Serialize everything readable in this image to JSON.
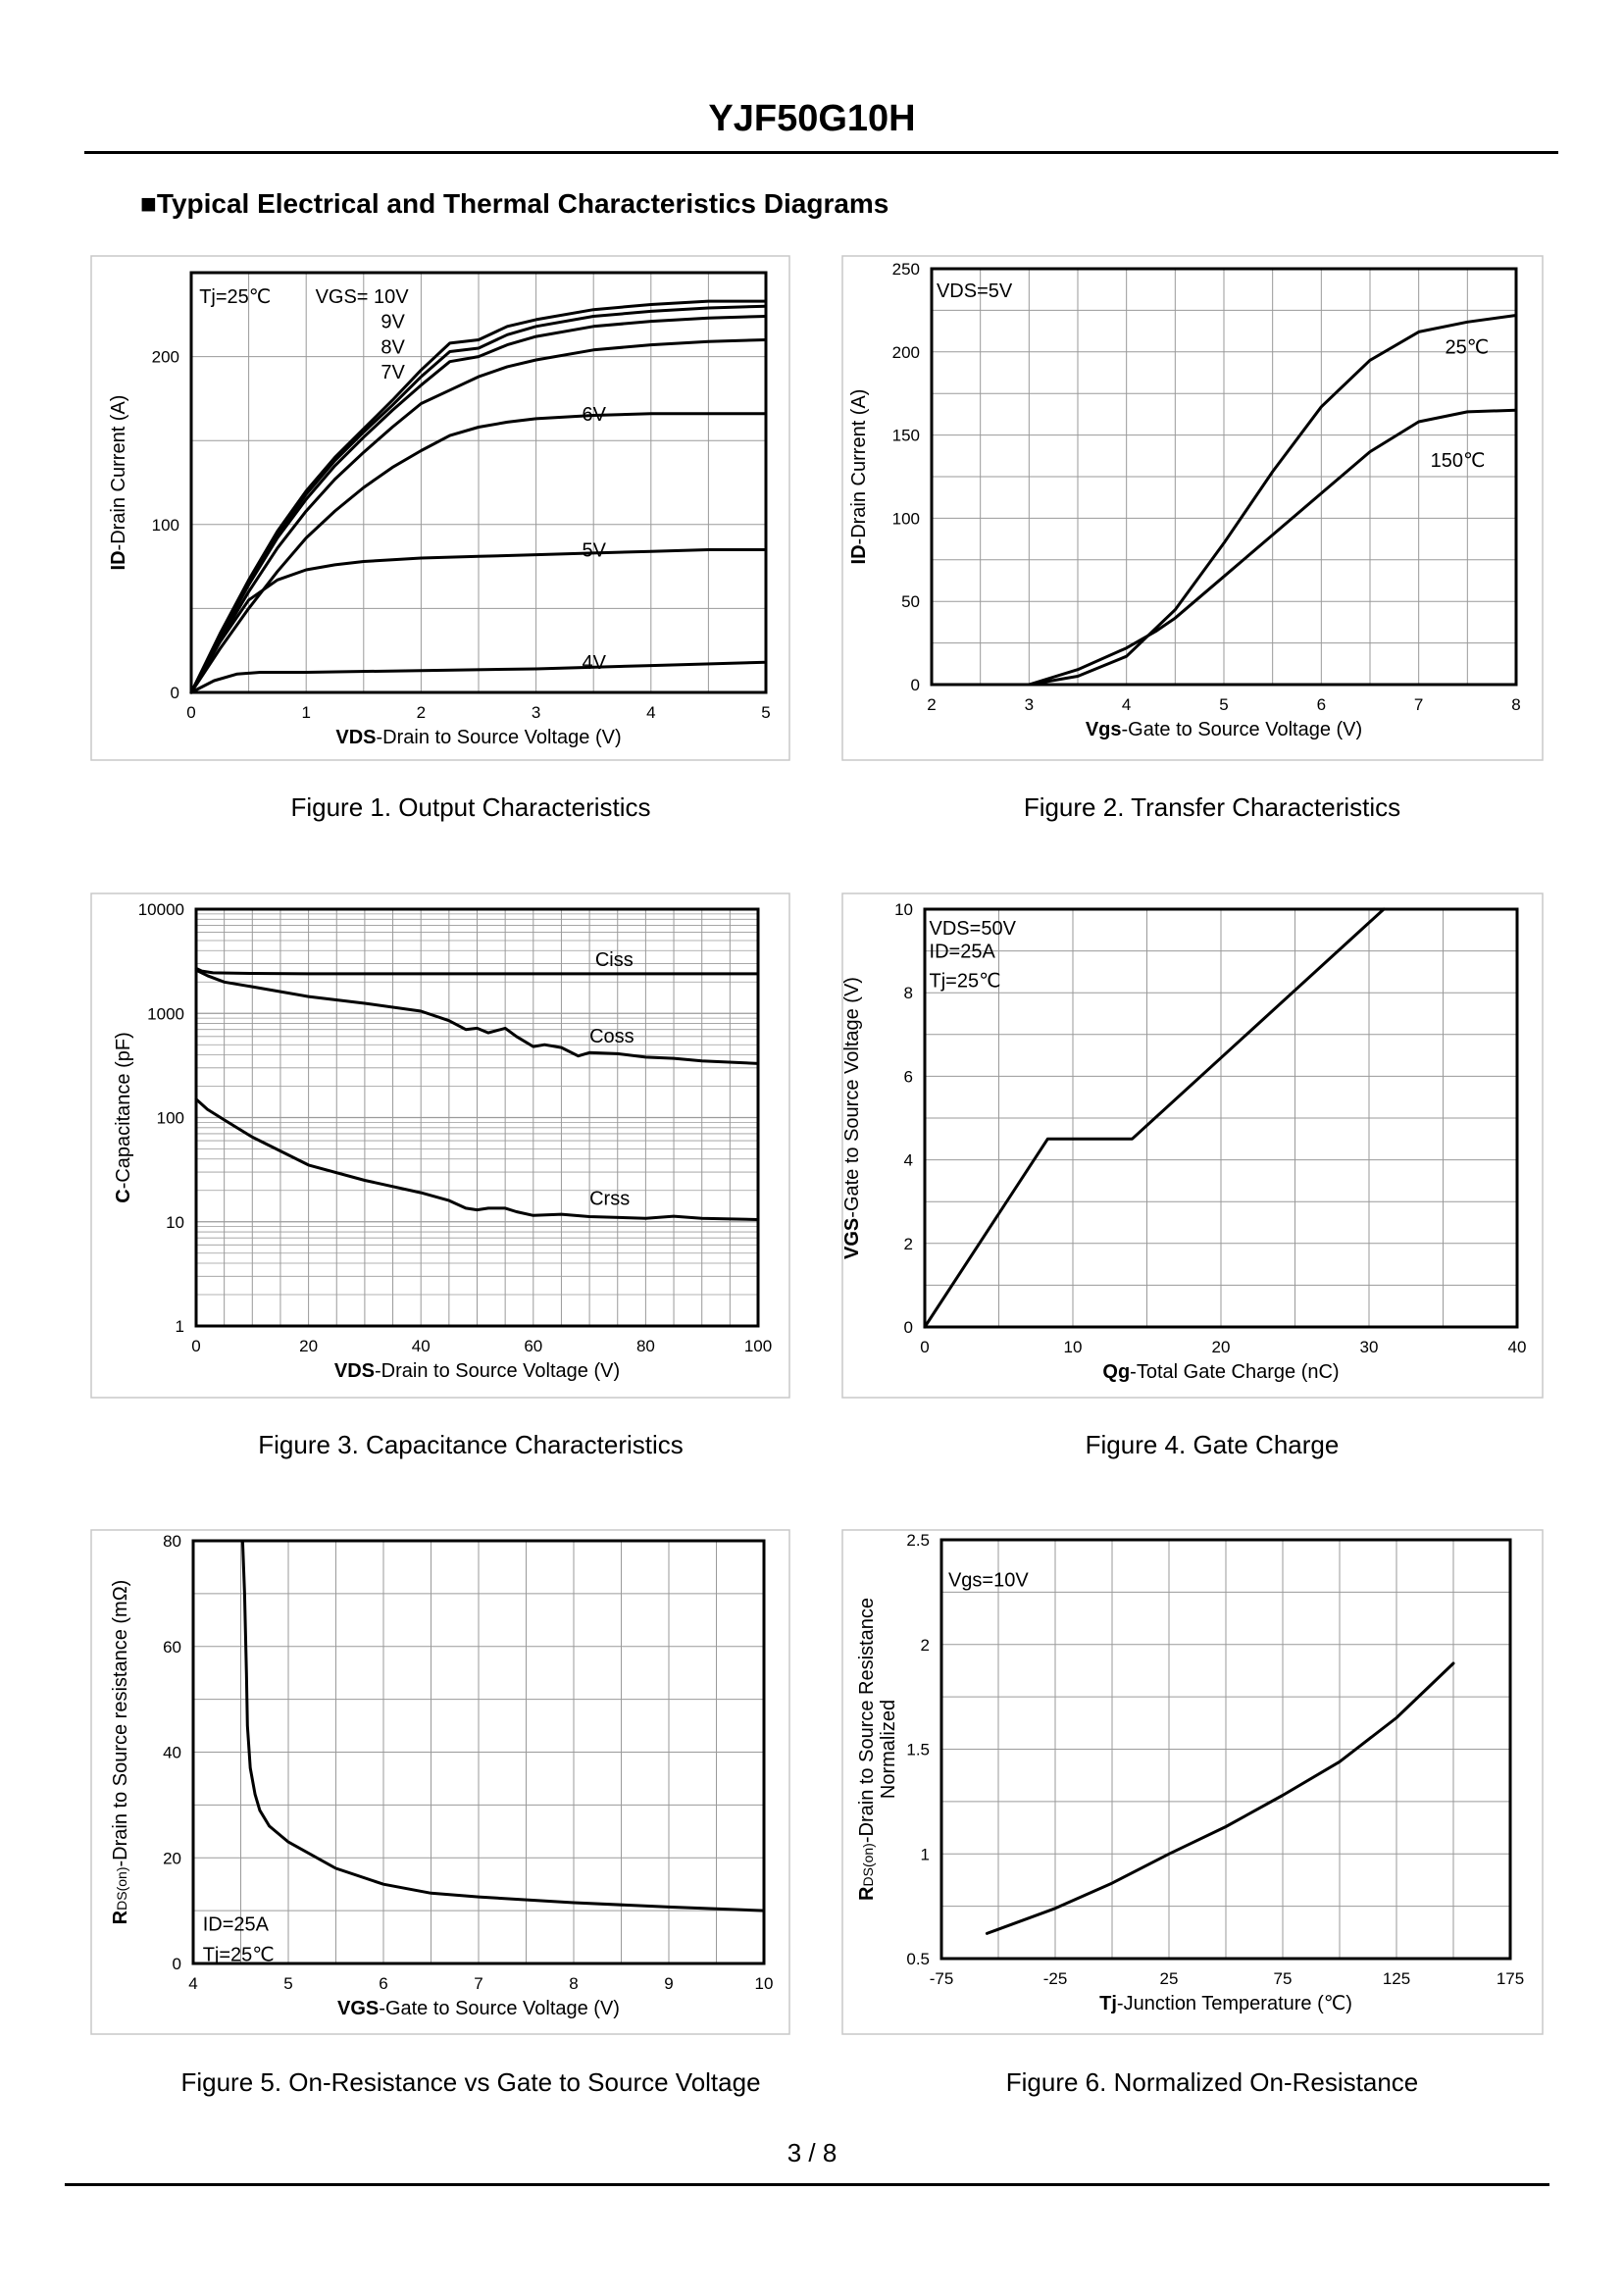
{
  "header": {
    "title": "YJF50G10H",
    "section_title": "■Typical Electrical and Thermal Characteristics Diagrams"
  },
  "footer": {
    "page_number": "3 / 8"
  },
  "chart_data": [
    {
      "id": "fig1",
      "type": "line",
      "caption": "Figure 1.  Output Characteristics",
      "xlabel_bold": "VDS",
      "xlabel_rest": "-Drain to Source Voltage (V)",
      "ylabel_bold": "ID",
      "ylabel_rest": "-Drain Current (A)",
      "xlim": [
        0,
        5
      ],
      "ylim": [
        0,
        250
      ],
      "xticks": [
        0,
        1,
        2,
        3,
        4,
        5
      ],
      "yticks": [
        0,
        100,
        200
      ],
      "grid": true,
      "annotations": [
        {
          "text": "Tj=25℃",
          "x": 0.07,
          "y": 236
        },
        {
          "text": "VGS= 10V",
          "x": 1.08,
          "y": 236
        },
        {
          "text": "9V",
          "x": 1.65,
          "y": 221
        },
        {
          "text": "8V",
          "x": 1.65,
          "y": 206
        },
        {
          "text": "7V",
          "x": 1.65,
          "y": 191
        },
        {
          "text": "6V",
          "x": 3.4,
          "y": 166
        },
        {
          "text": "5V",
          "x": 3.4,
          "y": 85
        },
        {
          "text": "4V",
          "x": 3.4,
          "y": 18
        }
      ],
      "series": [
        {
          "name": "VGS=10V",
          "x": [
            0,
            0.25,
            0.5,
            0.75,
            1,
            1.25,
            1.5,
            1.75,
            2,
            2.25,
            2.5,
            2.75,
            3,
            3.5,
            4,
            4.5,
            5
          ],
          "y": [
            0,
            35,
            67,
            96,
            120,
            140,
            157,
            174,
            192,
            208,
            210,
            218,
            222,
            228,
            231,
            233,
            233
          ]
        },
        {
          "name": "VGS=9V",
          "x": [
            0,
            0.25,
            0.5,
            0.75,
            1,
            1.25,
            1.5,
            1.75,
            2,
            2.25,
            2.5,
            2.75,
            3,
            3.5,
            4,
            4.5,
            5
          ],
          "y": [
            0,
            34,
            66,
            94,
            118,
            138,
            155,
            171,
            188,
            203,
            205,
            213,
            218,
            224,
            227,
            229,
            230
          ]
        },
        {
          "name": "VGS=8V",
          "x": [
            0,
            0.25,
            0.5,
            0.75,
            1,
            1.25,
            1.5,
            1.75,
            2,
            2.25,
            2.5,
            2.75,
            3,
            3.5,
            4,
            4.5,
            5
          ],
          "y": [
            0,
            33,
            64,
            92,
            115,
            135,
            152,
            168,
            183,
            197,
            200,
            207,
            212,
            218,
            221,
            223,
            224
          ]
        },
        {
          "name": "VGS=7V",
          "x": [
            0,
            0.25,
            0.5,
            0.75,
            1,
            1.25,
            1.5,
            1.75,
            2,
            2.25,
            2.5,
            2.75,
            3,
            3.5,
            4,
            4.5,
            5
          ],
          "y": [
            0,
            31,
            60,
            86,
            108,
            127,
            143,
            158,
            172,
            180,
            188,
            194,
            198,
            204,
            207,
            209,
            210
          ]
        },
        {
          "name": "VGS=6V",
          "x": [
            0,
            0.25,
            0.5,
            0.75,
            1,
            1.25,
            1.5,
            1.75,
            2,
            2.25,
            2.5,
            2.75,
            3,
            3.5,
            4,
            4.5,
            5
          ],
          "y": [
            0,
            26,
            50,
            72,
            92,
            108,
            122,
            134,
            144,
            153,
            158,
            161,
            163,
            165,
            166,
            166,
            166
          ]
        },
        {
          "name": "VGS=5V",
          "x": [
            0,
            0.25,
            0.5,
            0.75,
            1,
            1.25,
            1.5,
            1.75,
            2,
            2.5,
            3,
            3.5,
            4,
            4.5,
            5
          ],
          "y": [
            0,
            30,
            55,
            67,
            73,
            76,
            78,
            79,
            80,
            81,
            82,
            83,
            84,
            85,
            85
          ]
        },
        {
          "name": "VGS=4V",
          "x": [
            0,
            0.2,
            0.4,
            0.6,
            0.8,
            1,
            2,
            3,
            4,
            5
          ],
          "y": [
            0,
            7,
            11,
            12,
            12,
            12,
            13,
            14,
            16,
            18
          ]
        }
      ]
    },
    {
      "id": "fig2",
      "type": "line",
      "caption": "Figure 2.  Transfer Characteristics",
      "xlabel_bold": "Vgs",
      "xlabel_rest": "-Gate to Source Voltage (V)",
      "ylabel_bold": "ID",
      "ylabel_rest": "-Drain Current (A)",
      "xlim": [
        2,
        8
      ],
      "ylim": [
        0,
        250
      ],
      "xticks": [
        2,
        3,
        4,
        5,
        6,
        7,
        8
      ],
      "yticks": [
        0,
        50,
        100,
        150,
        200,
        250
      ],
      "grid": true,
      "annotations": [
        {
          "text": "VDS=5V",
          "x": 2.05,
          "y": 237
        },
        {
          "text": "25℃",
          "x": 7.27,
          "y": 203
        },
        {
          "text": "150℃",
          "x": 7.12,
          "y": 135
        }
      ],
      "series": [
        {
          "name": "25℃",
          "x": [
            3,
            3.5,
            4,
            4.5,
            5,
            5.5,
            6,
            6.5,
            7,
            7.5,
            8
          ],
          "y": [
            0,
            5,
            17,
            45,
            85,
            128,
            167,
            195,
            212,
            218,
            222
          ]
        },
        {
          "name": "150℃",
          "x": [
            3,
            3.5,
            4,
            4.3,
            4.5,
            5,
            5.5,
            6,
            6.5,
            7,
            7.5,
            8
          ],
          "y": [
            0,
            9,
            22,
            32,
            40,
            65,
            90,
            115,
            140,
            158,
            164,
            165
          ]
        }
      ]
    },
    {
      "id": "fig3",
      "type": "line",
      "caption": "Figure 3.  Capacitance Characteristics",
      "xlabel_bold": "VDS",
      "xlabel_rest": "-Drain to Source Voltage (V)",
      "ylabel_bold": "C",
      "ylabel_rest": "-Capacitance (pF)",
      "xlim": [
        0,
        100
      ],
      "ylim": [
        1,
        10000
      ],
      "yscale": "log",
      "xticks": [
        0,
        20,
        40,
        60,
        80,
        100
      ],
      "yticks": [
        1,
        10,
        100,
        1000,
        10000
      ],
      "grid": true,
      "annotations": [
        {
          "text": "Ciss",
          "x": 71,
          "y": 3300
        },
        {
          "text": "Coss",
          "x": 70,
          "y": 610
        },
        {
          "text": "Crss",
          "x": 70,
          "y": 17
        }
      ],
      "series": [
        {
          "name": "Ciss",
          "x": [
            0,
            1,
            3,
            10,
            20,
            40,
            60,
            80,
            100
          ],
          "y": [
            2700,
            2550,
            2450,
            2420,
            2400,
            2400,
            2400,
            2400,
            2400
          ]
        },
        {
          "name": "Coss",
          "x": [
            0,
            2,
            5,
            10,
            20,
            30,
            40,
            45,
            48,
            50,
            52,
            55,
            57,
            60,
            62,
            65,
            68,
            70,
            75,
            80,
            85,
            90,
            100
          ],
          "y": [
            2600,
            2300,
            2000,
            1800,
            1450,
            1250,
            1050,
            850,
            700,
            720,
            650,
            720,
            600,
            480,
            500,
            470,
            390,
            420,
            410,
            380,
            370,
            350,
            330
          ]
        },
        {
          "name": "Crss",
          "x": [
            0,
            2,
            5,
            10,
            20,
            30,
            40,
            45,
            48,
            50,
            52,
            55,
            57,
            60,
            65,
            70,
            80,
            85,
            90,
            100
          ],
          "y": [
            150,
            120,
            95,
            65,
            35,
            25,
            19,
            16,
            13.5,
            13,
            13.5,
            13.5,
            12.5,
            11.5,
            11.8,
            11.2,
            10.8,
            11.3,
            10.8,
            10.5
          ]
        }
      ]
    },
    {
      "id": "fig4",
      "type": "line",
      "caption": "Figure 4.  Gate Charge",
      "xlabel_bold": "Qg",
      "xlabel_rest": "-Total Gate Charge (nC)",
      "ylabel_bold": "VGS",
      "ylabel_rest": "-Gate to Source Voltage (V)",
      "xlim": [
        0,
        40
      ],
      "ylim": [
        0,
        10
      ],
      "xticks": [
        0,
        10,
        20,
        30,
        40
      ],
      "yticks": [
        0,
        2,
        4,
        6,
        8,
        10
      ],
      "grid": true,
      "annotations": [
        {
          "text": "VDS=50V",
          "x": 0.3,
          "y": 9.55
        },
        {
          "text": "ID=25A",
          "x": 0.3,
          "y": 9.0
        },
        {
          "text": "Tj=25℃",
          "x": 0.3,
          "y": 8.3
        }
      ],
      "series": [
        {
          "name": "VGS",
          "x": [
            0,
            8.3,
            14,
            31
          ],
          "y": [
            0,
            4.5,
            4.5,
            10
          ]
        }
      ]
    },
    {
      "id": "fig5",
      "type": "line",
      "caption": "Figure 5.  On-Resistance vs Gate to Source Voltage",
      "xlabel_bold": "VGS",
      "xlabel_rest": "-Gate to Source Voltage (V)",
      "ylabel_bold": "R",
      "ylabel_sub": "DS(on)",
      "ylabel_rest": "-Drain to Source resistance (mΩ)",
      "xlim": [
        4,
        10
      ],
      "ylim": [
        0,
        80
      ],
      "xticks": [
        4,
        5,
        6,
        7,
        8,
        9,
        10
      ],
      "yticks": [
        0,
        20,
        40,
        60,
        80
      ],
      "grid": true,
      "annotations": [
        {
          "text": "ID=25A",
          "x": 4.1,
          "y": 7.5
        },
        {
          "text": "Tj=25℃",
          "x": 4.1,
          "y": 1.8
        }
      ],
      "series": [
        {
          "name": "RDS(on)",
          "x": [
            4.52,
            4.54,
            4.56,
            4.57,
            4.6,
            4.65,
            4.7,
            4.8,
            5,
            5.5,
            6,
            6.5,
            7,
            8,
            9,
            10
          ],
          "y": [
            80,
            70,
            55,
            45,
            37,
            32,
            29,
            26,
            23,
            18,
            15,
            13.3,
            12.6,
            11.5,
            10.7,
            10
          ]
        }
      ]
    },
    {
      "id": "fig6",
      "type": "line",
      "caption": "Figure 6.  Normalized On-Resistance",
      "xlabel_bold": "Tj",
      "xlabel_rest": "-Junction  Temperature (℃)",
      "ylabel_bold": "R",
      "ylabel_sub": "DS(on)",
      "ylabel_rest": "-Drain to Source Resistance",
      "ylabel_line2": "Normalized",
      "xlim": [
        -75,
        175
      ],
      "ylim": [
        0.5,
        2.5
      ],
      "xticks": [
        -75,
        -25,
        25,
        75,
        125,
        175
      ],
      "yticks": [
        0.5,
        1,
        1.5,
        2,
        2.5
      ],
      "grid": true,
      "annotations": [
        {
          "text": "Vgs=10V",
          "x": -72,
          "y": 2.31
        }
      ],
      "series": [
        {
          "name": "Normalized RDS(on)",
          "x": [
            -55,
            -25,
            0,
            25,
            50,
            75,
            100,
            125,
            150
          ],
          "y": [
            0.62,
            0.74,
            0.86,
            1.0,
            1.13,
            1.28,
            1.44,
            1.65,
            1.91
          ]
        }
      ]
    }
  ]
}
